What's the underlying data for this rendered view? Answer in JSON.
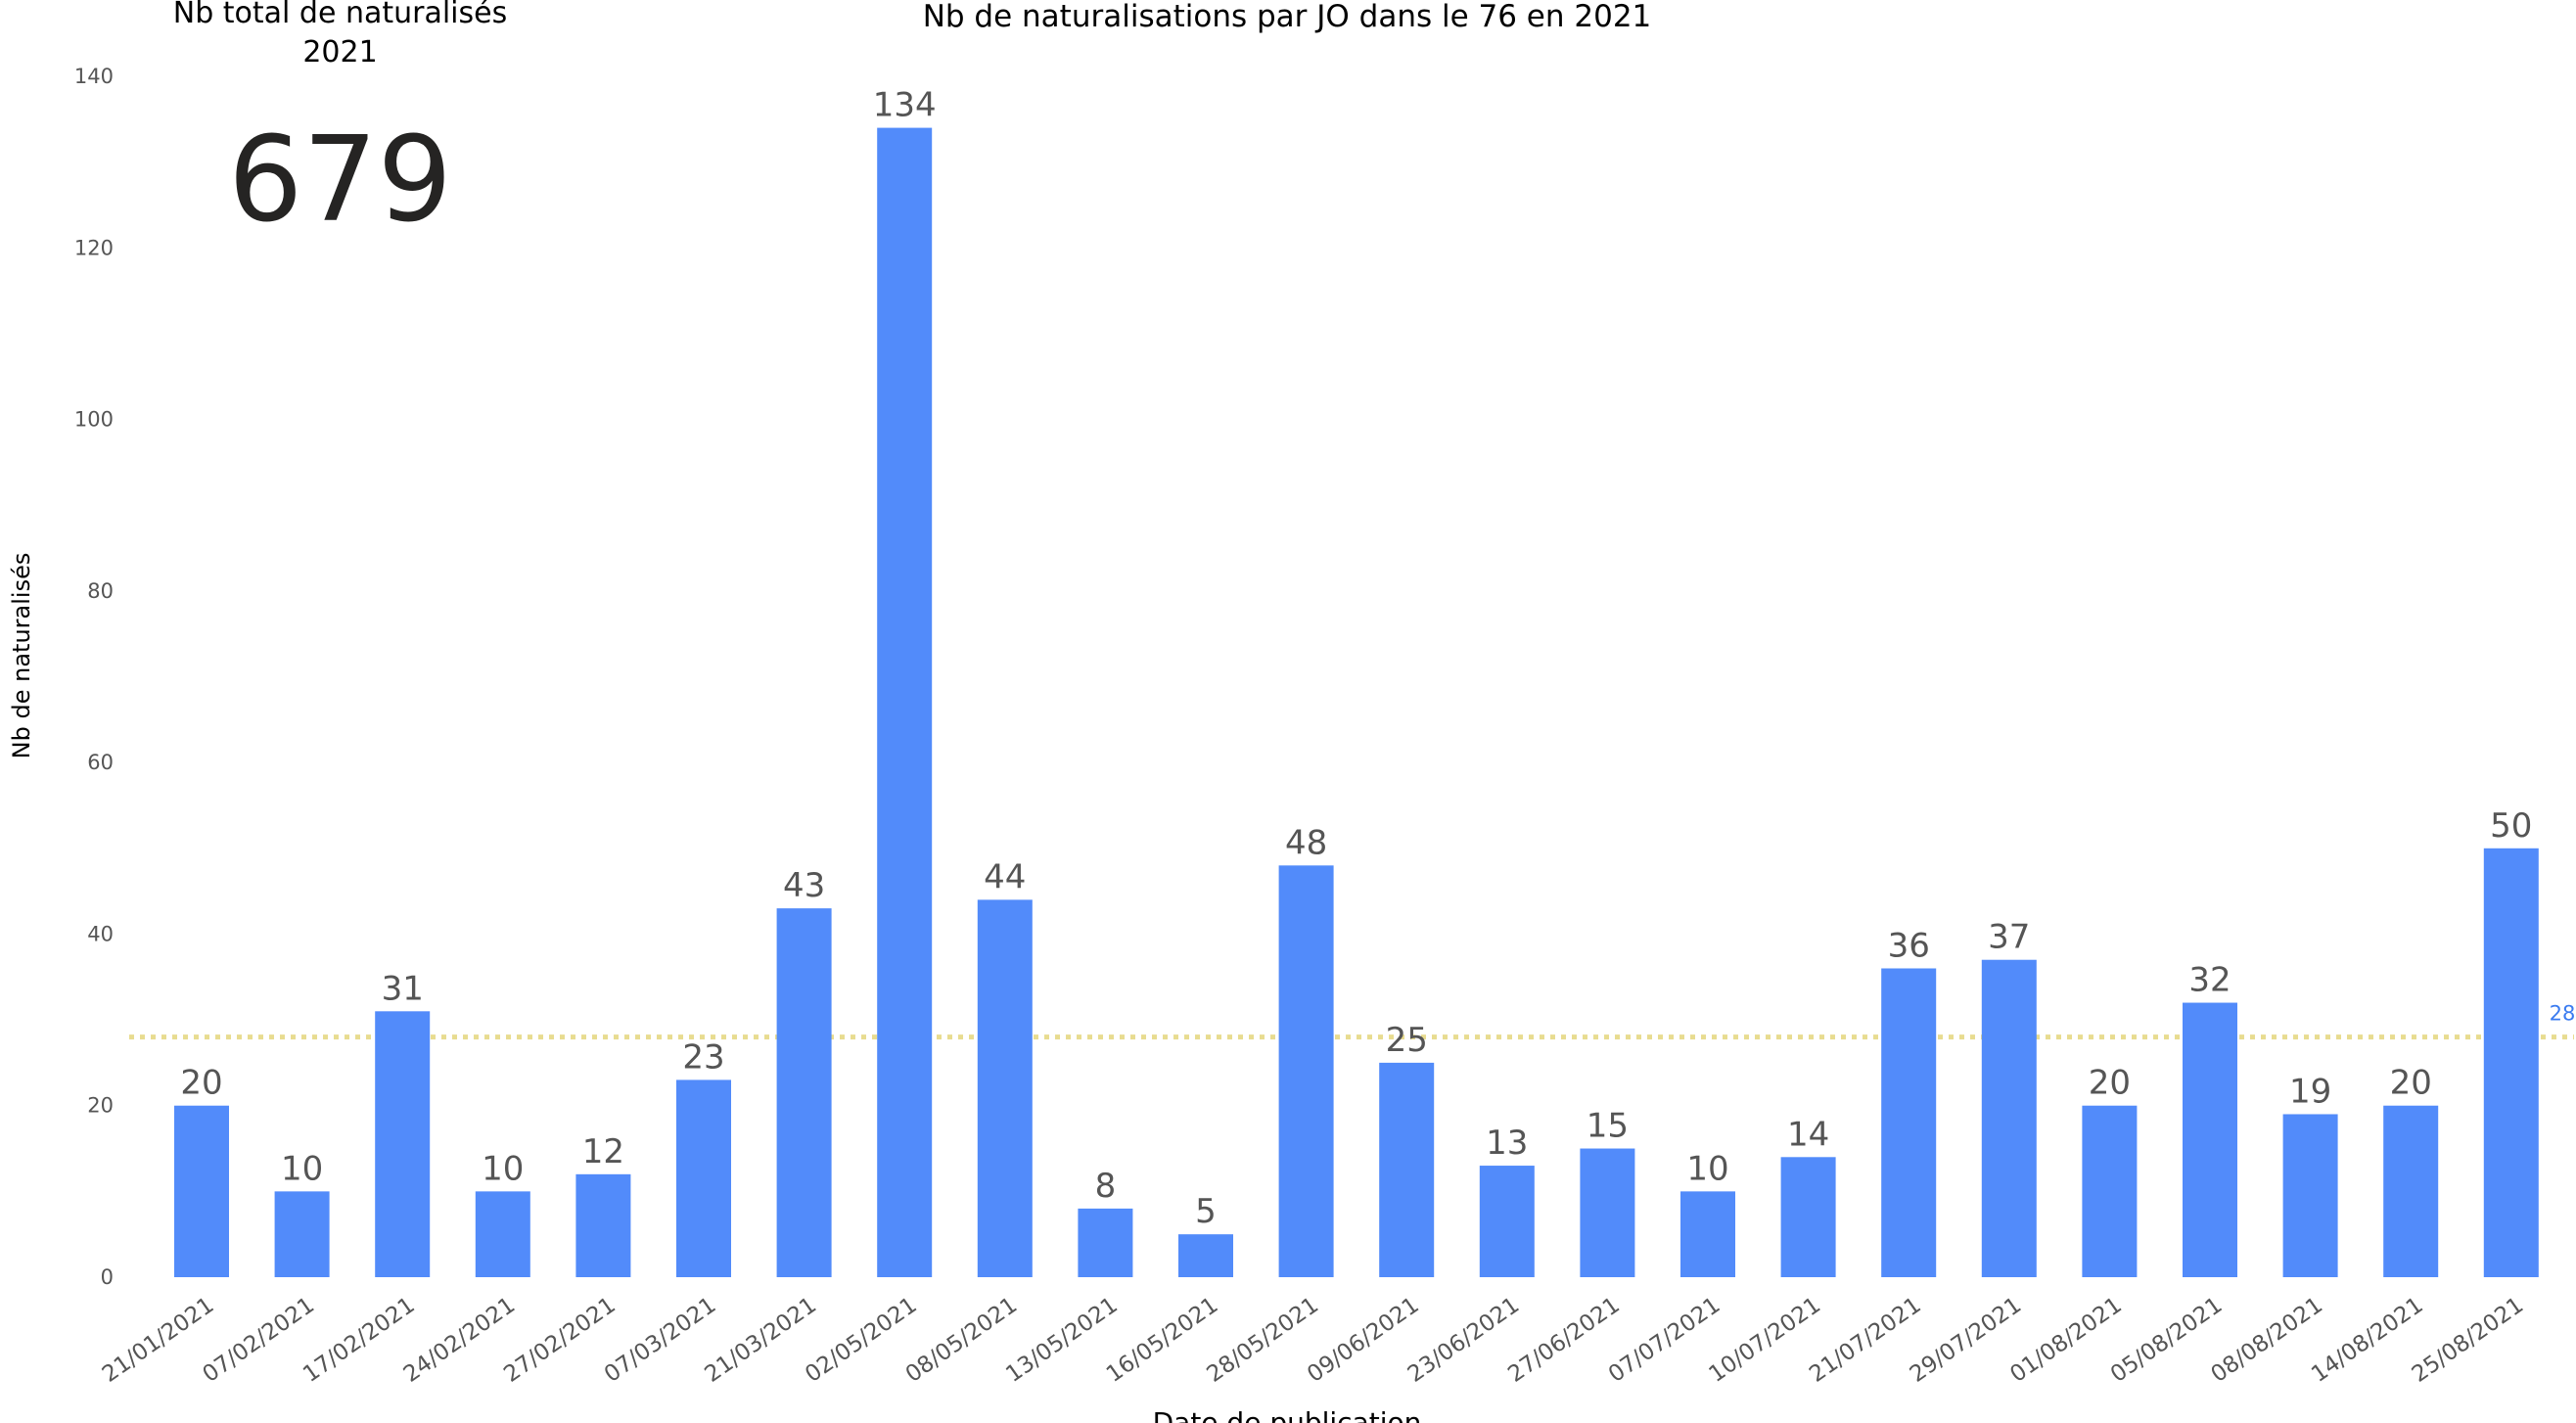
{
  "kpi": {
    "title_line1": "Nb total de naturalisés",
    "title_line2": "2021",
    "value": "679"
  },
  "chart_data": {
    "type": "bar",
    "title": "Nb de naturalisations par JO dans le 76 en 2021",
    "xlabel": "Date de publication",
    "ylabel": "Nb de naturalisés",
    "ylim": [
      0,
      140
    ],
    "yticks": [
      0,
      20,
      40,
      60,
      80,
      100,
      120,
      140
    ],
    "grid": false,
    "categories": [
      "21/01/2021",
      "07/02/2021",
      "17/02/2021",
      "24/02/2021",
      "27/02/2021",
      "07/03/2021",
      "21/03/2021",
      "02/05/2021",
      "08/05/2021",
      "13/05/2021",
      "16/05/2021",
      "28/05/2021",
      "09/06/2021",
      "23/06/2021",
      "27/06/2021",
      "07/07/2021",
      "10/07/2021",
      "21/07/2021",
      "29/07/2021",
      "01/08/2021",
      "05/08/2021",
      "08/08/2021",
      "14/08/2021",
      "25/08/2021"
    ],
    "values": [
      20,
      10,
      31,
      10,
      12,
      23,
      43,
      134,
      44,
      8,
      5,
      48,
      25,
      13,
      15,
      10,
      14,
      36,
      37,
      20,
      32,
      19,
      20,
      50
    ],
    "bar_color": "#528bfa",
    "average_line": {
      "value": 28,
      "label": "28",
      "color": "#e8dc90",
      "label_color": "#3a7bf0"
    }
  }
}
